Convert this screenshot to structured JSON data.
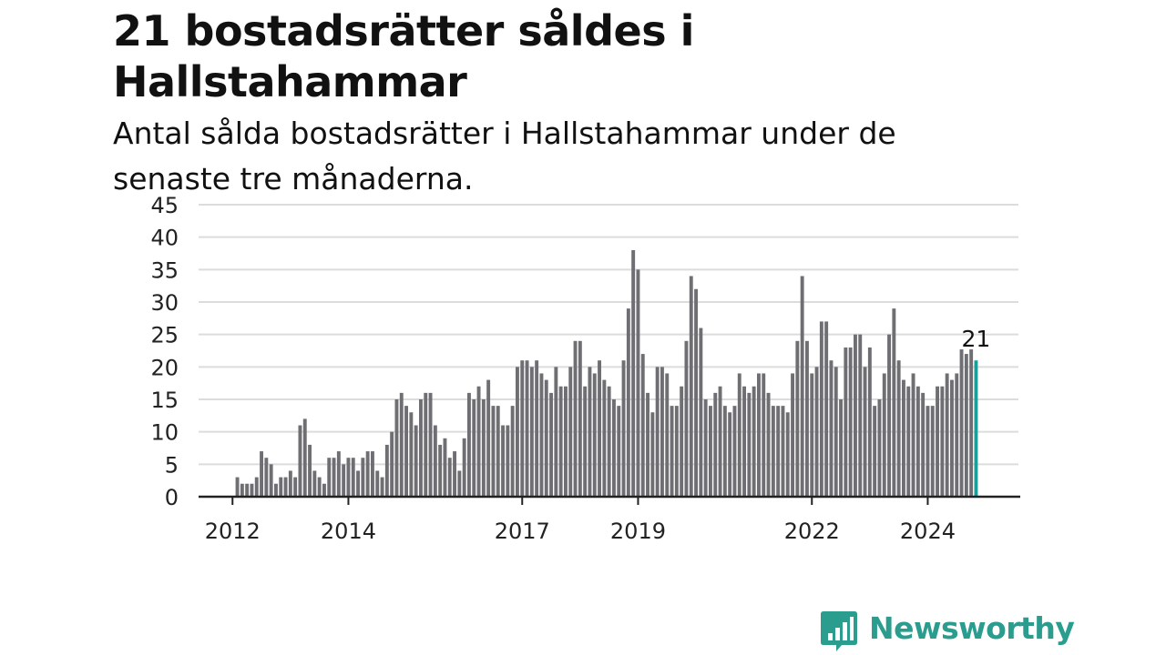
{
  "chart_data": {
    "type": "bar",
    "title": "21 bostadsrätter såldes i Hallstahammar",
    "subtitle": "Antal sålda bostadsrätter i Hallstahammar under de senaste tre månaderna.",
    "xlabel": "",
    "ylabel": "",
    "ylim": [
      0,
      45
    ],
    "y_ticks": [
      0,
      5,
      10,
      15,
      20,
      25,
      30,
      35,
      40,
      45
    ],
    "x_tick_labels": [
      "2012",
      "2014",
      "2017",
      "2019",
      "2022",
      "2024"
    ],
    "x_tick_month_index": [
      6,
      30,
      66,
      90,
      126,
      150
    ],
    "start_month": "2011-07",
    "grid": "horizontal",
    "legend": "none",
    "colors": {
      "bar": "#6e6e73",
      "highlight": "#1a9e9a",
      "grid": "#dcdcdc",
      "axis": "#222222"
    },
    "highlight_label": "21",
    "values": [
      null,
      null,
      null,
      null,
      null,
      null,
      null,
      3,
      2,
      2,
      2,
      3,
      7,
      6,
      5,
      2,
      3,
      3,
      4,
      3,
      11,
      12,
      8,
      4,
      3,
      2,
      6,
      6,
      7,
      5,
      6,
      6,
      4,
      6,
      7,
      7,
      4,
      3,
      8,
      10,
      15,
      16,
      14,
      13,
      11,
      15,
      16,
      16,
      11,
      8,
      9,
      6,
      7,
      4,
      9,
      16,
      15,
      17,
      15,
      18,
      14,
      14,
      11,
      11,
      14,
      20,
      21,
      21,
      20,
      21,
      19,
      18,
      16,
      20,
      17,
      17,
      20,
      24,
      24,
      17,
      20,
      19,
      21,
      18,
      17,
      15,
      14,
      21,
      29,
      38,
      35,
      22,
      16,
      13,
      20,
      20,
      19,
      14,
      14,
      17,
      24,
      34,
      32,
      26,
      15,
      14,
      16,
      17,
      14,
      13,
      14,
      19,
      17,
      16,
      17,
      19,
      19,
      16,
      14,
      14,
      14,
      13,
      19,
      24,
      34,
      24,
      19,
      20,
      27,
      27,
      21,
      20,
      15,
      23,
      23,
      25,
      25,
      20,
      23,
      14,
      15,
      19,
      25,
      29,
      21,
      18,
      17,
      19,
      17,
      16,
      14,
      14,
      17,
      17,
      19,
      18,
      19,
      22.7,
      22,
      22.7,
      21
    ]
  },
  "brand": {
    "name": "Newsworthy",
    "color": "#2a9d8f",
    "icon": "newsworthy-bar-chart-icon"
  }
}
